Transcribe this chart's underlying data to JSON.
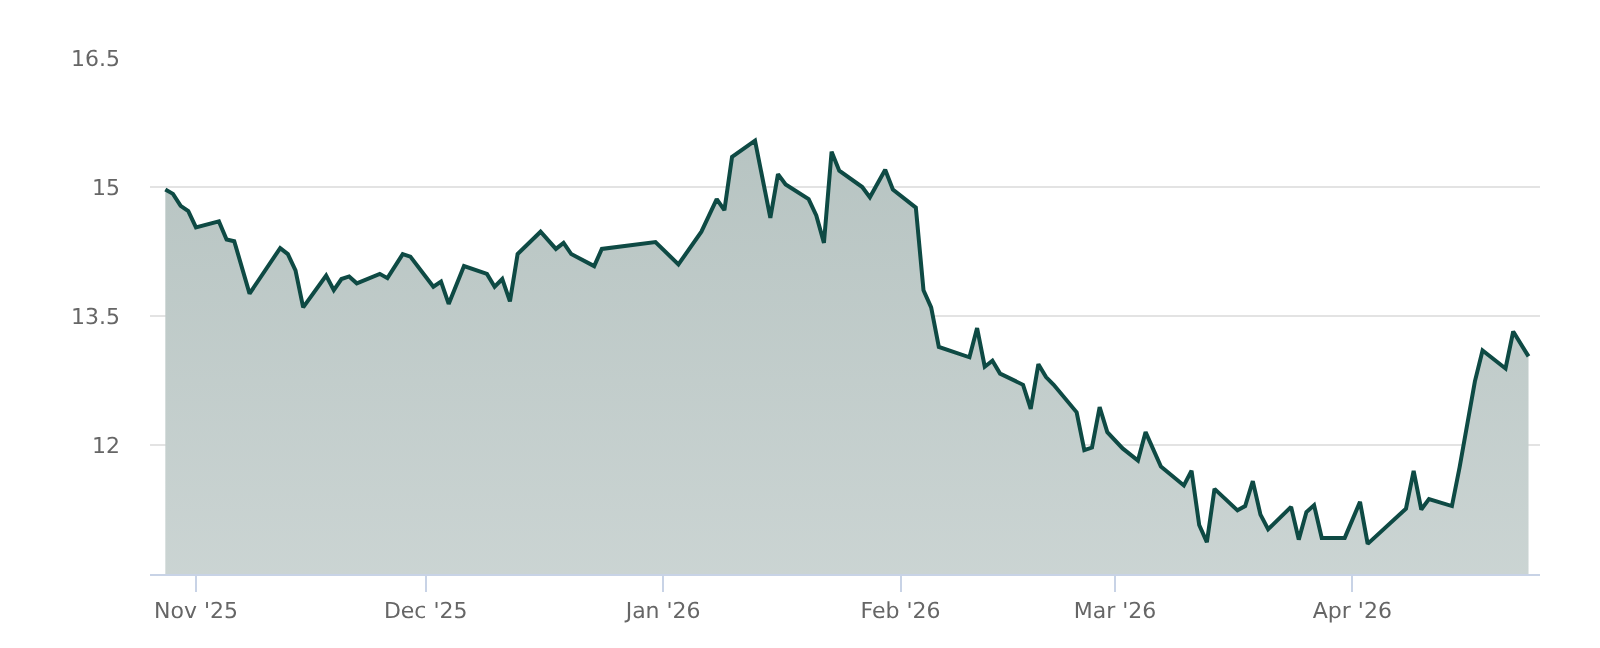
{
  "chart_data": {
    "type": "area",
    "grid": "y",
    "marker": "none",
    "line_style": "solid",
    "x": [
      "2025-10-28",
      "2025-10-29",
      "2025-10-30",
      "2025-10-31",
      "2025-11-01",
      "2025-11-04",
      "2025-11-05",
      "2025-11-06",
      "2025-11-08",
      "2025-11-12",
      "2025-11-13",
      "2025-11-14",
      "2025-11-15",
      "2025-11-18",
      "2025-11-19",
      "2025-11-20",
      "2025-11-21",
      "2025-11-22",
      "2025-11-25",
      "2025-11-26",
      "2025-11-28",
      "2025-11-29",
      "2025-12-02",
      "2025-12-03",
      "2025-12-04",
      "2025-12-06",
      "2025-12-09",
      "2025-12-10",
      "2025-12-11",
      "2025-12-12",
      "2025-12-13",
      "2025-12-16",
      "2025-12-18",
      "2025-12-19",
      "2025-12-20",
      "2025-12-23",
      "2025-12-24",
      "2025-12-31",
      "2026-01-03",
      "2026-01-06",
      "2026-01-08",
      "2026-01-09",
      "2026-01-10",
      "2026-01-13",
      "2026-01-15",
      "2026-01-16",
      "2026-01-17",
      "2026-01-20",
      "2026-01-21",
      "2026-01-22",
      "2026-01-23",
      "2026-01-24",
      "2026-01-27",
      "2026-01-28",
      "2026-01-30",
      "2026-01-31",
      "2026-02-03",
      "2026-02-04",
      "2026-02-05",
      "2026-02-06",
      "2026-02-10",
      "2026-02-11",
      "2026-02-12",
      "2026-02-13",
      "2026-02-14",
      "2026-02-17",
      "2026-02-18",
      "2026-02-19",
      "2026-02-20",
      "2026-02-21",
      "2026-02-24",
      "2026-02-25",
      "2026-02-26",
      "2026-02-27",
      "2026-02-28",
      "2026-03-02",
      "2026-03-04",
      "2026-03-05",
      "2026-03-07",
      "2026-03-10",
      "2026-03-11",
      "2026-03-12",
      "2026-03-13",
      "2026-03-14",
      "2026-03-17",
      "2026-03-18",
      "2026-03-19",
      "2026-03-20",
      "2026-03-21",
      "2026-03-24",
      "2026-03-25",
      "2026-03-26",
      "2026-03-27",
      "2026-03-28",
      "2026-03-31",
      "2026-04-02",
      "2026-04-03",
      "2026-04-08",
      "2026-04-09",
      "2026-04-10",
      "2026-04-11",
      "2026-04-14",
      "2026-04-15",
      "2026-04-17",
      "2026-04-18",
      "2026-04-21",
      "2026-04-22",
      "2026-04-24"
    ],
    "series": [
      {
        "color": "#0e4a44",
        "values": [
          14.97,
          14.92,
          14.78,
          14.72,
          14.53,
          14.6,
          14.39,
          14.37,
          13.76,
          14.29,
          14.22,
          14.03,
          13.6,
          13.97,
          13.8,
          13.93,
          13.96,
          13.88,
          13.99,
          13.94,
          14.22,
          14.19,
          13.84,
          13.9,
          13.64,
          14.08,
          13.99,
          13.84,
          13.93,
          13.67,
          14.22,
          14.48,
          14.28,
          14.35,
          14.22,
          14.08,
          14.28,
          14.36,
          14.1,
          14.48,
          14.86,
          14.73,
          15.35,
          15.54,
          14.64,
          15.15,
          15.03,
          14.86,
          14.67,
          14.35,
          15.41,
          15.19,
          15.0,
          14.88,
          15.2,
          14.97,
          14.76,
          13.8,
          13.6,
          13.14,
          13.02,
          13.36,
          12.91,
          12.98,
          12.83,
          12.7,
          12.42,
          12.94,
          12.79,
          12.7,
          12.38,
          11.94,
          11.97,
          12.44,
          12.15,
          11.96,
          11.82,
          12.15,
          11.75,
          11.53,
          11.7,
          11.07,
          10.87,
          11.49,
          11.24,
          11.29,
          11.58,
          11.19,
          11.02,
          11.28,
          10.9,
          11.22,
          11.3,
          10.92,
          10.92,
          11.34,
          10.85,
          11.26,
          11.7,
          11.25,
          11.37,
          11.29,
          11.74,
          12.74,
          13.1,
          12.89,
          13.32,
          13.03
        ]
      }
    ],
    "xlim": [
      "2025-10-26",
      "2026-04-25T12:00"
    ],
    "xticks": [
      {
        "value": "2025-11-01",
        "label": "Nov '25"
      },
      {
        "value": "2025-12-01",
        "label": "Dec '25"
      },
      {
        "value": "2026-01-01",
        "label": "Jan '26"
      },
      {
        "value": "2026-02-01",
        "label": "Feb '26"
      },
      {
        "value": "2026-03-01",
        "label": "Mar '26"
      },
      {
        "value": "2026-04-01",
        "label": "Apr '26"
      }
    ],
    "ylim": [
      10.5,
      16.5
    ],
    "yticks": [
      12,
      13.5,
      15,
      16.5
    ]
  }
}
